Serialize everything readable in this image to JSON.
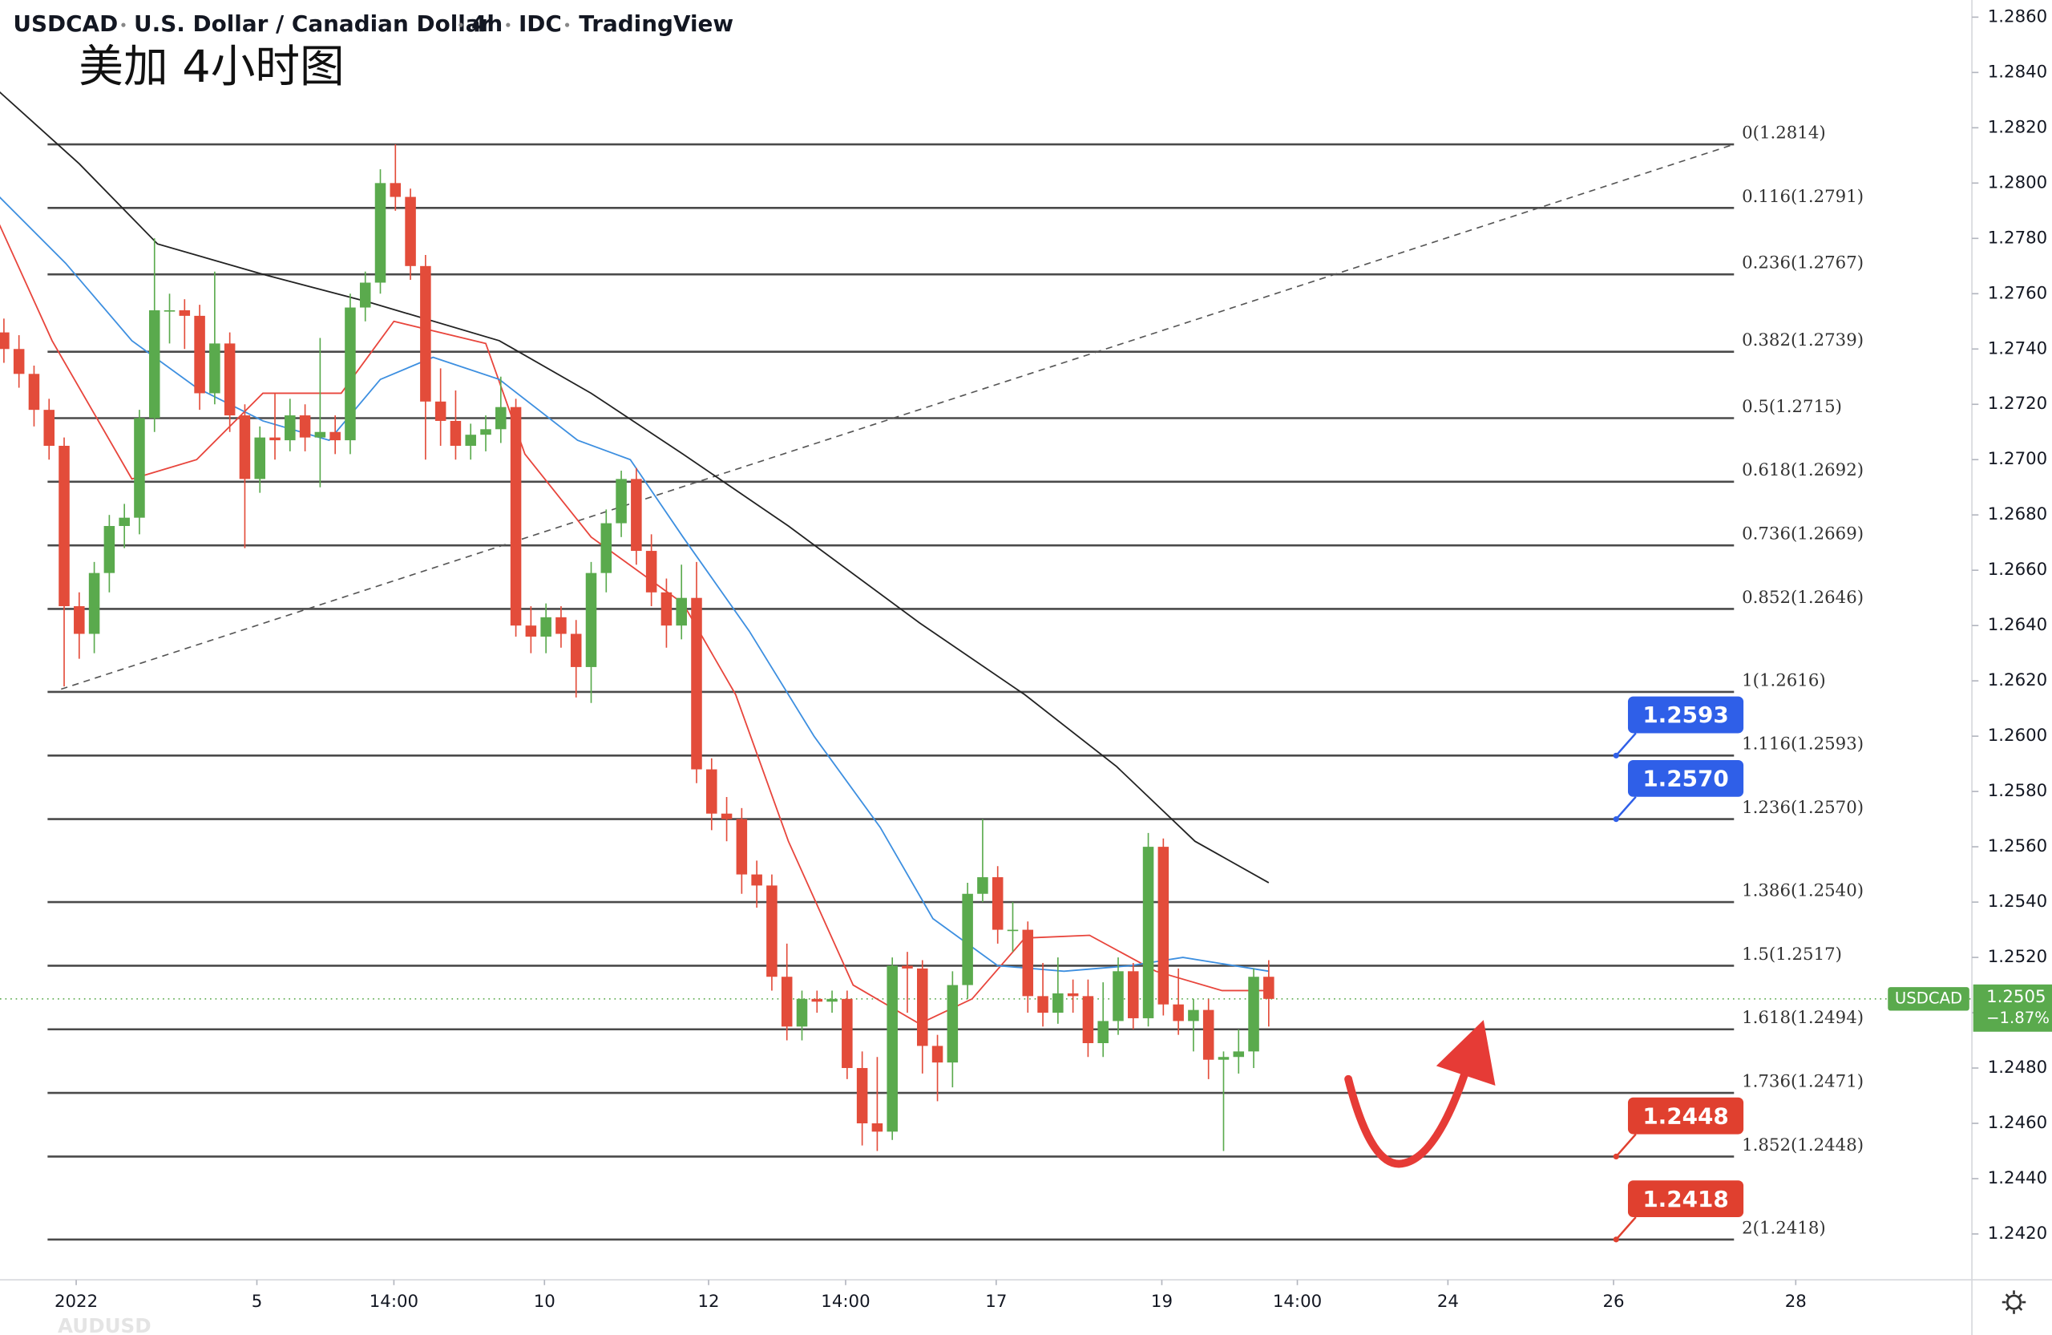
{
  "chart_data": {
    "type": "candlestick",
    "header": {
      "symbol": "USDCAD",
      "name": "U.S. Dollar / Canadian Dollar",
      "interval": "4h",
      "source": "IDC",
      "platform": "TradingView"
    },
    "title": "美加 4小时图",
    "open": [
      1.2746,
      1.274,
      1.2731,
      1.2718,
      1.2705,
      1.2647,
      1.2637,
      1.2659,
      1.2676,
      1.2679,
      1.2715,
      1.2754,
      1.2754,
      1.2752,
      1.2724,
      1.2742,
      1.2716,
      1.2693,
      1.2708,
      1.2707,
      1.2716,
      1.2708,
      1.271,
      1.2707,
      1.2755,
      1.2764,
      1.28,
      1.2795,
      1.277,
      1.2721,
      1.2714,
      1.2705,
      1.2709,
      1.2711,
      1.2719,
      1.264,
      1.2636,
      1.2643,
      1.2637,
      1.2625,
      1.2659,
      1.2677,
      1.2693,
      1.2667,
      1.2652,
      1.264,
      1.265,
      1.2588,
      1.2572,
      1.257,
      1.255,
      1.2546,
      1.2513,
      1.2495,
      1.2505,
      1.2504,
      1.2505,
      1.248,
      1.246,
      1.2457,
      1.2517,
      1.2516,
      1.2488,
      1.2482,
      1.251,
      1.2543,
      1.2549,
      1.253,
      1.253,
      1.2506,
      1.25,
      1.2507,
      1.2506,
      1.2489,
      1.2497,
      1.2515,
      1.2498,
      1.256,
      1.2503,
      1.2497,
      1.2501,
      1.2483,
      1.2484,
      1.2486,
      1.2513
    ],
    "high": [
      1.2751,
      1.2745,
      1.2734,
      1.2722,
      1.2708,
      1.2652,
      1.2663,
      1.268,
      1.2684,
      1.2718,
      1.278,
      1.276,
      1.2758,
      1.2756,
      1.2768,
      1.2746,
      1.272,
      1.2712,
      1.2724,
      1.2722,
      1.272,
      1.2744,
      1.2716,
      1.276,
      1.2768,
      1.2805,
      1.2814,
      1.2798,
      1.2774,
      1.2733,
      1.2725,
      1.2713,
      1.2716,
      1.273,
      1.2722,
      1.2647,
      1.2648,
      1.2647,
      1.2642,
      1.2663,
      1.2682,
      1.2696,
      1.2697,
      1.2673,
      1.2657,
      1.2662,
      1.2663,
      1.2592,
      1.2578,
      1.2574,
      1.2555,
      1.255,
      1.2525,
      1.2508,
      1.2508,
      1.2508,
      1.2508,
      1.2486,
      1.2484,
      1.252,
      1.2522,
      1.2519,
      1.2492,
      1.2515,
      1.2547,
      1.257,
      1.2553,
      1.254,
      1.2533,
      1.2518,
      1.252,
      1.2512,
      1.2512,
      1.2511,
      1.252,
      1.2518,
      1.2565,
      1.2563,
      1.2516,
      1.2505,
      1.2505,
      1.2486,
      1.2494,
      1.2516,
      1.2519
    ],
    "low": [
      1.2735,
      1.2726,
      1.2712,
      1.27,
      1.2618,
      1.2628,
      1.263,
      1.2652,
      1.2668,
      1.2673,
      1.271,
      1.2742,
      1.274,
      1.2718,
      1.272,
      1.271,
      1.2668,
      1.2688,
      1.27,
      1.2703,
      1.2703,
      1.269,
      1.2702,
      1.2702,
      1.275,
      1.276,
      1.279,
      1.2765,
      1.27,
      1.2705,
      1.27,
      1.27,
      1.2703,
      1.2706,
      1.2636,
      1.263,
      1.263,
      1.2632,
      1.2614,
      1.2612,
      1.2652,
      1.2672,
      1.2662,
      1.2647,
      1.2632,
      1.2635,
      1.2583,
      1.2566,
      1.2562,
      1.2543,
      1.2538,
      1.2508,
      1.249,
      1.249,
      1.25,
      1.25,
      1.2476,
      1.2452,
      1.245,
      1.2454,
      1.25,
      1.2478,
      1.2468,
      1.2473,
      1.2505,
      1.254,
      1.2525,
      1.2522,
      1.25,
      1.2495,
      1.2496,
      1.25,
      1.2484,
      1.2484,
      1.2492,
      1.2494,
      1.2495,
      1.2499,
      1.2492,
      1.2486,
      1.2476,
      1.245,
      1.2478,
      1.248,
      1.2495
    ],
    "close": [
      1.274,
      1.2731,
      1.2718,
      1.2705,
      1.2647,
      1.2637,
      1.2659,
      1.2676,
      1.2679,
      1.2715,
      1.2754,
      1.2754,
      1.2752,
      1.2724,
      1.2742,
      1.2716,
      1.2693,
      1.2708,
      1.2707,
      1.2716,
      1.2708,
      1.271,
      1.2707,
      1.2755,
      1.2764,
      1.28,
      1.2795,
      1.277,
      1.2721,
      1.2714,
      1.2705,
      1.2709,
      1.2711,
      1.2719,
      1.264,
      1.2636,
      1.2643,
      1.2637,
      1.2625,
      1.2659,
      1.2677,
      1.2693,
      1.2667,
      1.2652,
      1.264,
      1.265,
      1.2588,
      1.2572,
      1.257,
      1.255,
      1.2546,
      1.2513,
      1.2495,
      1.2505,
      1.2504,
      1.2505,
      1.248,
      1.246,
      1.2457,
      1.2517,
      1.2516,
      1.2488,
      1.2482,
      1.251,
      1.2543,
      1.2549,
      1.253,
      1.253,
      1.2506,
      1.25,
      1.2507,
      1.2506,
      1.2489,
      1.2497,
      1.2515,
      1.2498,
      1.256,
      1.2503,
      1.2497,
      1.2501,
      1.2483,
      1.2484,
      1.2486,
      1.2513,
      1.2505
    ],
    "up_color": "#5aaa4d",
    "down_color": "#e34c3a",
    "xlim": [
      -0.26,
      130.7
    ],
    "xticks": [
      {
        "value": 4.8,
        "label": "2022"
      },
      {
        "value": 16.8,
        "label": "5"
      },
      {
        "value": 25.9,
        "label": "14:00"
      },
      {
        "value": 35.9,
        "label": "10"
      },
      {
        "value": 46.8,
        "label": "12"
      },
      {
        "value": 55.9,
        "label": "14:00"
      },
      {
        "value": 65.9,
        "label": "17"
      },
      {
        "value": 76.9,
        "label": "19"
      },
      {
        "value": 85.9,
        "label": "14:00"
      },
      {
        "value": 95.9,
        "label": "24"
      },
      {
        "value": 106.9,
        "label": "26"
      },
      {
        "value": 119.0,
        "label": "28"
      }
    ],
    "ylim": [
      1.24034,
      1.28662
    ],
    "yticks": [
      {
        "value": 1.286,
        "label": "1.2860"
      },
      {
        "value": 1.284,
        "label": "1.2840"
      },
      {
        "value": 1.282,
        "label": "1.2820"
      },
      {
        "value": 1.28,
        "label": "1.2800"
      },
      {
        "value": 1.278,
        "label": "1.2780"
      },
      {
        "value": 1.276,
        "label": "1.2760"
      },
      {
        "value": 1.274,
        "label": "1.2740"
      },
      {
        "value": 1.272,
        "label": "1.2720"
      },
      {
        "value": 1.27,
        "label": "1.2700"
      },
      {
        "value": 1.268,
        "label": "1.2680"
      },
      {
        "value": 1.266,
        "label": "1.2660"
      },
      {
        "value": 1.264,
        "label": "1.2640"
      },
      {
        "value": 1.262,
        "label": "1.2620"
      },
      {
        "value": 1.26,
        "label": "1.2600"
      },
      {
        "value": 1.258,
        "label": "1.2580"
      },
      {
        "value": 1.256,
        "label": "1.2560"
      },
      {
        "value": 1.254,
        "label": "1.2540"
      },
      {
        "value": 1.252,
        "label": "1.2520"
      },
      {
        "value": 1.25,
        "label": "1.2500"
      },
      {
        "value": 1.248,
        "label": "1.2480"
      },
      {
        "value": 1.246,
        "label": "1.2460"
      },
      {
        "value": 1.244,
        "label": "1.2440"
      },
      {
        "value": 1.242,
        "label": "1.2420"
      }
    ],
    "overlays": [
      {
        "color": "#e8453c",
        "x": [
          -0.3,
          3.2,
          8.5,
          12.8,
          17.2,
          22.4,
          25.9,
          32.0,
          34.6,
          39.0,
          45.1,
          48.6,
          52.1,
          56.4,
          60.8,
          64.3,
          67.8,
          72.1,
          76.5,
          80.9,
          84.0
        ],
        "values": [
          1.2785,
          1.2743,
          1.2693,
          1.27,
          1.2724,
          1.2724,
          1.275,
          1.2742,
          1.2702,
          1.2672,
          1.2648,
          1.2615,
          1.2562,
          1.251,
          1.2496,
          1.2505,
          1.2527,
          1.2528,
          1.2515,
          1.2508,
          1.2508
        ]
      },
      {
        "color": "#3d8fe0",
        "x": [
          -0.3,
          4.1,
          8.5,
          12.8,
          17.2,
          21.6,
          25.0,
          28.5,
          32.9,
          38.1,
          41.6,
          45.1,
          49.5,
          53.8,
          58.2,
          61.7,
          66.0,
          70.4,
          74.8,
          78.3,
          84.0
        ],
        "values": [
          1.2795,
          1.2771,
          1.2743,
          1.2726,
          1.2714,
          1.2707,
          1.2729,
          1.2737,
          1.2729,
          1.2707,
          1.27,
          1.2672,
          1.2638,
          1.26,
          1.2567,
          1.2534,
          1.2517,
          1.2515,
          1.2517,
          1.252,
          1.2515
        ]
      },
      {
        "color": "#222222",
        "x": [
          -0.3,
          5.0,
          10.2,
          17.2,
          24.2,
          32.9,
          39.0,
          45.1,
          52.1,
          60.8,
          67.8,
          73.9,
          79.1,
          84.0
        ],
        "values": [
          1.2833,
          1.2807,
          1.2778,
          1.2767,
          1.2757,
          1.2743,
          1.2724,
          1.2702,
          1.2676,
          1.2641,
          1.2615,
          1.2589,
          1.2562,
          1.2547
        ]
      }
    ],
    "trendline": {
      "color": "#555555",
      "x": [
        3.8,
        114.9
      ],
      "values": [
        1.2617,
        1.2814
      ]
    },
    "fib_x": [
      2.9,
      114.9
    ],
    "fib_color": "#4a4a4a",
    "fib_levels": [
      {
        "value": 1.2814,
        "label": "0(1.2814)"
      },
      {
        "value": 1.2791,
        "label": "0.116(1.2791)"
      },
      {
        "value": 1.2767,
        "label": "0.236(1.2767)"
      },
      {
        "value": 1.2739,
        "label": "0.382(1.2739)"
      },
      {
        "value": 1.2715,
        "label": "0.5(1.2715)"
      },
      {
        "value": 1.2692,
        "label": "0.618(1.2692)"
      },
      {
        "value": 1.2669,
        "label": "0.736(1.2669)"
      },
      {
        "value": 1.2646,
        "label": "0.852(1.2646)"
      },
      {
        "value": 1.2616,
        "label": "1(1.2616)"
      },
      {
        "value": 1.2593,
        "label": "1.116(1.2593)"
      },
      {
        "value": 1.257,
        "label": "1.236(1.2570)"
      },
      {
        "value": 1.254,
        "label": "1.386(1.2540)"
      },
      {
        "value": 1.2517,
        "label": "1.5(1.2517)"
      },
      {
        "value": 1.2494,
        "label": "1.618(1.2494)"
      },
      {
        "value": 1.2471,
        "label": "1.736(1.2471)"
      },
      {
        "value": 1.2448,
        "label": "1.852(1.2448)"
      },
      {
        "value": 1.2418,
        "label": "2(1.2418)"
      }
    ],
    "price_tags": [
      {
        "value": 1.2593,
        "color": "#2f5fe8"
      },
      {
        "value": 1.257,
        "label": "1.2570",
        "color": "#2f5fe8"
      },
      {
        "value": 1.2448,
        "color": "#e0402f"
      },
      {
        "value": 1.2418,
        "color": "#e0402f"
      }
    ],
    "last_price": {
      "symbol": "USDCAD",
      "value": 1.2505,
      "color": "#5aaa4d",
      "change": {
        "value": -1.87,
        "label": "−1.87%"
      }
    },
    "ghost_label": "AUDUSD"
  }
}
